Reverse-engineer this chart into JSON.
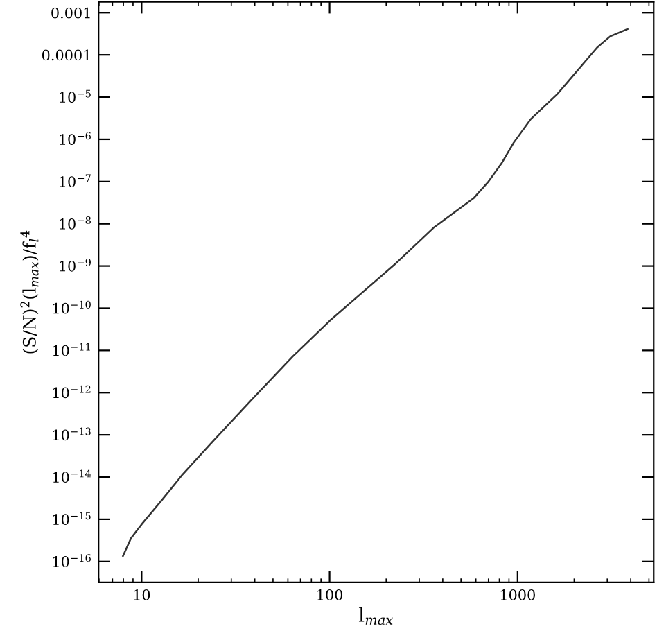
{
  "chart_data": {
    "type": "line",
    "xlabel": "l$_{max}$",
    "ylabel": "(S/N)$^{2}$(l$_{max}$)/f$_{l}$$^{4}$",
    "log": "xy",
    "grid": false,
    "legend": false,
    "marker": "none",
    "line_style": "solid",
    "x": [
      7.96,
      8.79,
      10,
      12.6,
      16.5,
      24,
      39,
      63.5,
      100,
      221,
      360,
      586,
      700,
      822,
      953,
      1175,
      1625,
      2650,
      3110,
      3850
    ],
    "series": [
      {
        "color": "#333333",
        "values": [
          1.35e-16,
          3.6e-16,
          7.6e-16,
          2.6e-15,
          1.15e-14,
          7.1e-14,
          7.2e-13,
          7.1e-12,
          5e-11,
          1.07e-09,
          8.3e-09,
          4.1e-08,
          1e-07,
          2.7e-07,
          8.3e-07,
          3e-06,
          1.17e-05,
          0.00015,
          0.000275,
          0.00041
        ]
      }
    ],
    "xlim": [
      5.9,
      5300
    ],
    "xticks": [
      10,
      100,
      1000
    ],
    "ylim": [
      3.2e-17,
      0.0018
    ],
    "yticks": [
      {
        "value": 0.001,
        "label": "0.001"
      },
      {
        "value": 0.0001,
        "label": "0.0001"
      },
      {
        "value": 1e-05,
        "label": "10$^{−5}$"
      },
      {
        "value": 1e-06,
        "label": "10$^{−6}$"
      },
      {
        "value": 1e-07,
        "label": "10$^{−7}$"
      },
      {
        "value": 1e-08,
        "label": "10$^{−8}$"
      },
      {
        "value": 1e-09,
        "label": "10$^{−9}$"
      },
      {
        "value": 1e-10,
        "label": "10$^{−10}$"
      },
      {
        "value": 1e-11,
        "label": "10$^{−11}$"
      },
      {
        "value": 1e-12,
        "label": "10$^{−12}$"
      },
      {
        "value": 1e-13,
        "label": "10$^{−13}$"
      },
      {
        "value": 1e-14,
        "label": "10$^{−14}$"
      },
      {
        "value": 1e-15,
        "label": "10$^{−15}$"
      },
      {
        "value": 1e-16,
        "label": "10$^{−16}$"
      }
    ]
  }
}
